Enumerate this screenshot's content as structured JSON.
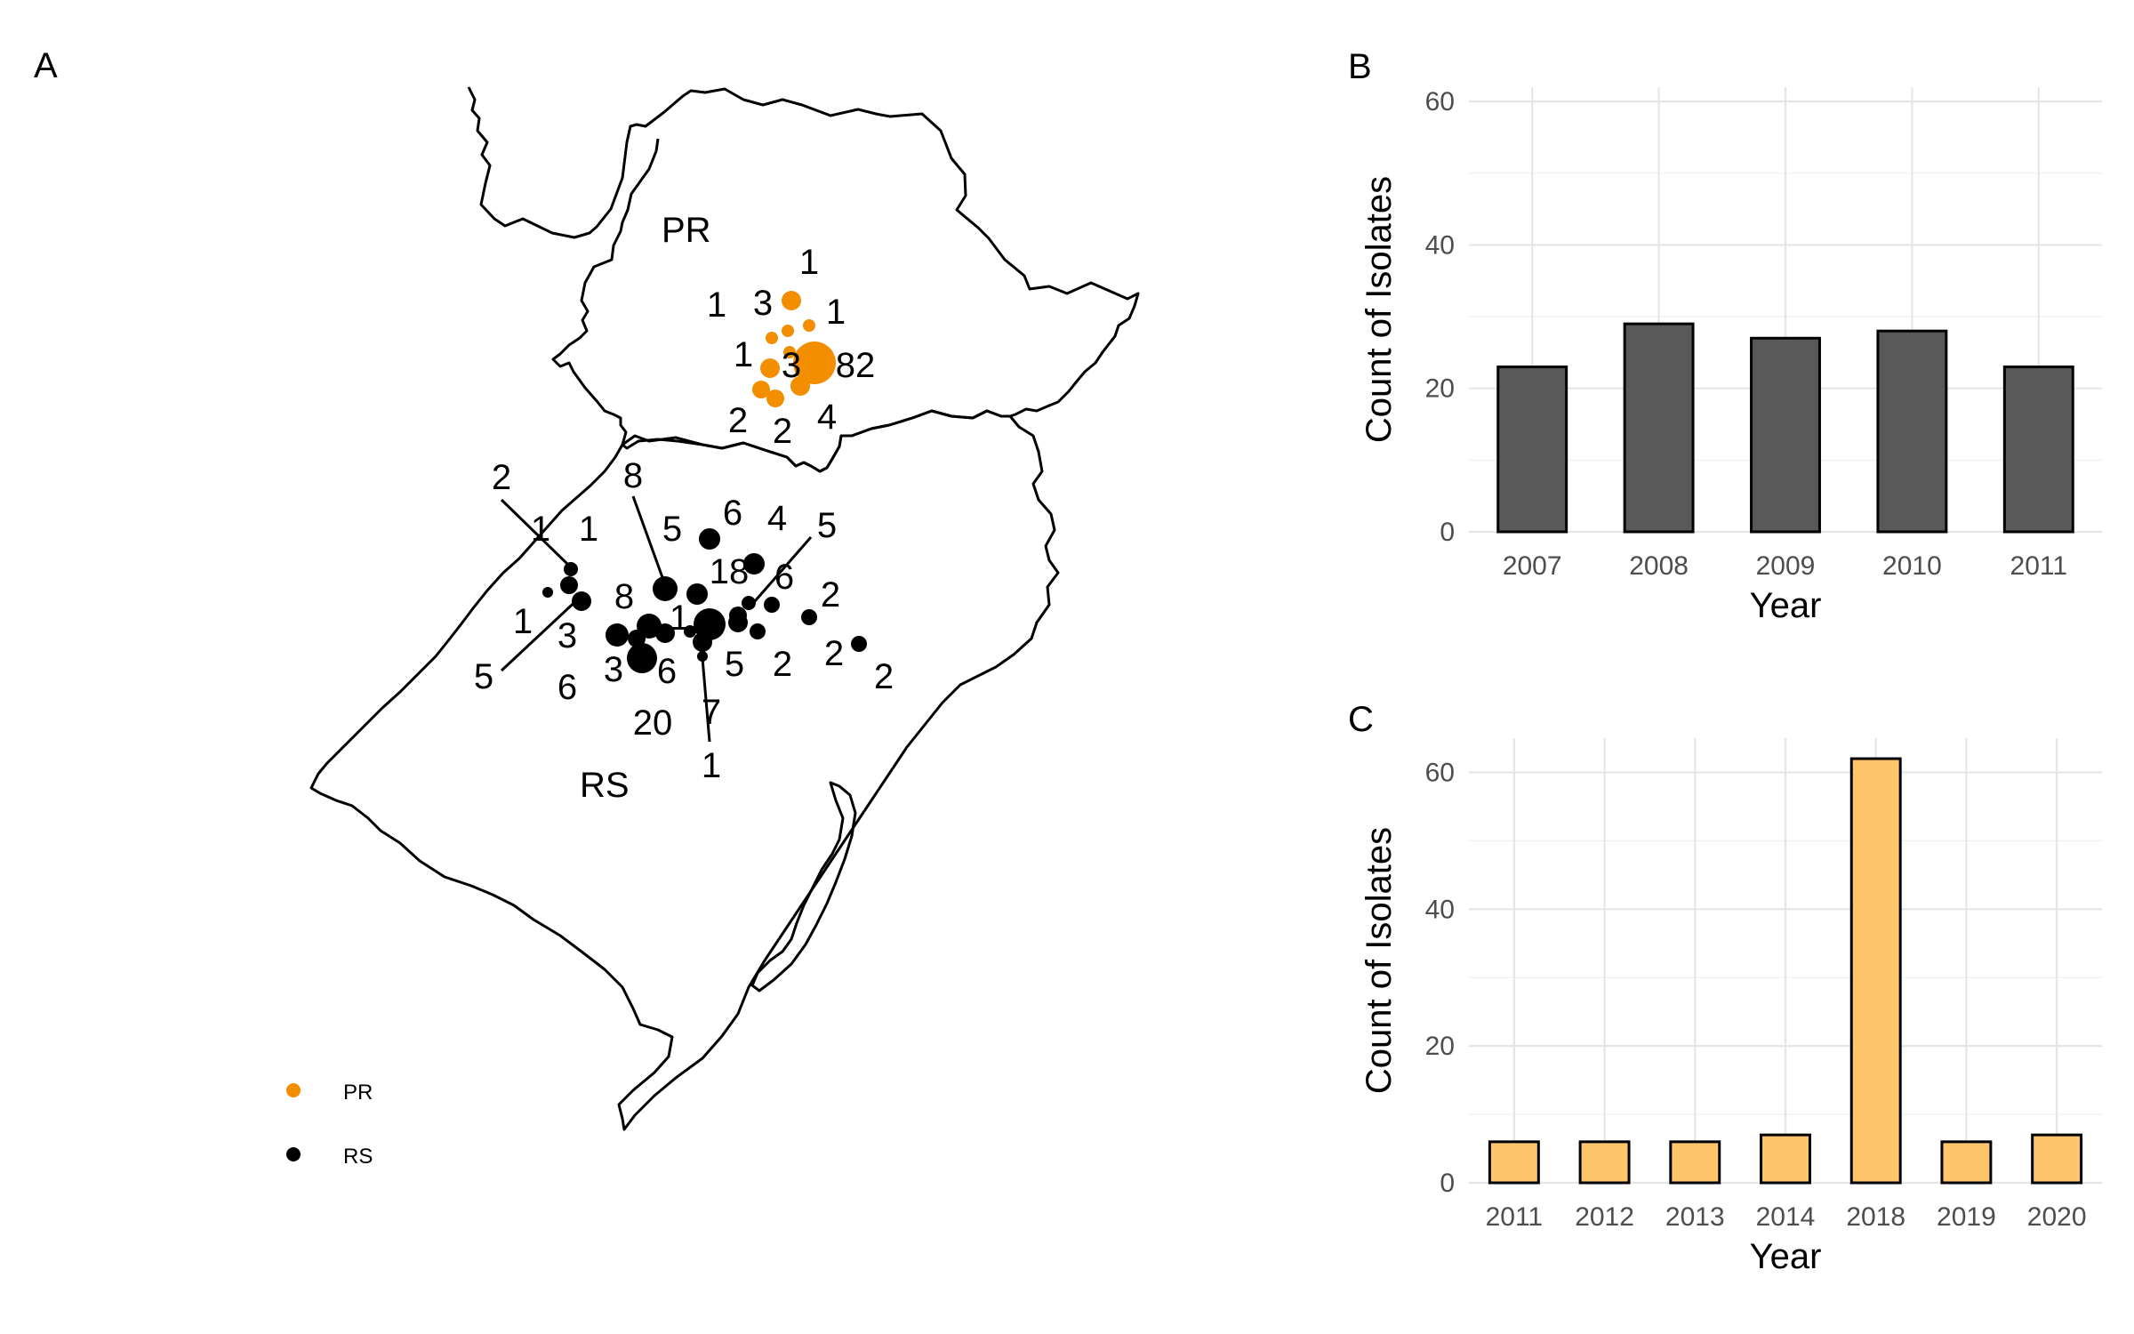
{
  "panels": {
    "a": {
      "letter": "A"
    },
    "b": {
      "letter": "B"
    },
    "c": {
      "letter": "C"
    }
  },
  "map": {
    "states": [
      {
        "name": "PR"
      },
      {
        "name": "RS"
      }
    ],
    "legend": [
      {
        "label": "PR",
        "color": "#F28E00"
      },
      {
        "label": "RS",
        "color": "#000000"
      }
    ],
    "pr_counts": [
      "1",
      "1",
      "3",
      "1",
      "1",
      "3",
      "82",
      "2",
      "2",
      "4"
    ],
    "rs_counts": [
      "2",
      "8",
      "1",
      "1",
      "5",
      "6",
      "4",
      "5",
      "18",
      "6",
      "2",
      "8",
      "1",
      "1",
      "3",
      "5",
      "6",
      "3",
      "6",
      "20",
      "7",
      "1",
      "5",
      "2",
      "2",
      "2"
    ],
    "colors": {
      "pr": "#F28E00",
      "rs": "#000000"
    }
  },
  "chart_data": [
    {
      "panel": "B",
      "type": "bar",
      "categories": [
        "2007",
        "2008",
        "2009",
        "2010",
        "2011"
      ],
      "values": [
        23,
        29,
        27,
        28,
        23
      ],
      "xlabel": "Year",
      "ylabel": "Count of Isolates",
      "ylim": [
        0,
        62
      ],
      "yticks": [
        "0",
        "20",
        "40",
        "60"
      ],
      "bar_color": "#595959",
      "grid": true
    },
    {
      "panel": "C",
      "type": "bar",
      "categories": [
        "2011",
        "2012",
        "2013",
        "2014",
        "2018",
        "2019",
        "2020"
      ],
      "values": [
        6,
        6,
        6,
        7,
        62,
        6,
        7
      ],
      "xlabel": "Year",
      "ylabel": "Count of Isolates",
      "ylim": [
        0,
        65
      ],
      "yticks": [
        "0",
        "20",
        "40",
        "60"
      ],
      "bar_color": "#FFC56B",
      "grid": true
    }
  ]
}
